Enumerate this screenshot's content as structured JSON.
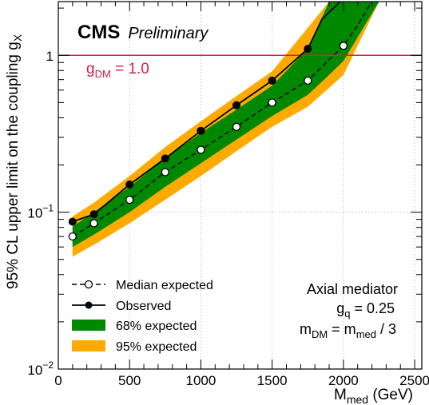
{
  "chart_data": {
    "type": "line",
    "y_scale": "log",
    "xlim": [
      0,
      2550
    ],
    "ylim": [
      0.01,
      2.2
    ],
    "grid": true,
    "xlabel": {
      "main": "M",
      "sub": "med",
      "unit": " (GeV)"
    },
    "ylabel": {
      "main": "95% CL upper limit on the coupling g",
      "sub": "X"
    },
    "x_ticks": [
      0,
      500,
      1000,
      1500,
      2000,
      2500
    ],
    "x_tick_labels": [
      "0",
      "500",
      "1000",
      "1500",
      "2000",
      "2500"
    ],
    "y_ticks": [
      0.01,
      0.1,
      1
    ],
    "y_tick_labels": [
      {
        "base": "10",
        "exp": "−2"
      },
      {
        "base": "10",
        "exp": "−1"
      },
      {
        "base": "1",
        "exp": ""
      }
    ],
    "header": {
      "experiment": "CMS",
      "status": "Preliminary"
    },
    "reference_line": {
      "y": 1.0,
      "label_main": "g",
      "label_sub": "DM",
      "label_rest": " = 1.0",
      "color": "#d2204b"
    },
    "annotation": {
      "line1": "Axial mediator",
      "line2": {
        "main": "g",
        "sub": "q",
        "rest": " = 0.25"
      },
      "line3": {
        "m1": "m",
        "s1": "DM",
        "eq": " = m",
        "s2": "med",
        "rest": " / 3"
      }
    },
    "legend": {
      "position": "bottom-left",
      "entries": [
        {
          "key": "expected",
          "label": "Median expected"
        },
        {
          "key": "observed",
          "label": "Observed"
        },
        {
          "key": "band68",
          "label": "68% expected"
        },
        {
          "key": "band95",
          "label": "95% expected"
        }
      ]
    },
    "colors": {
      "band68": "#008800",
      "band95": "#ffaa00",
      "observed": "#000000",
      "expected": "#000000",
      "grid": "#c8c8c8"
    },
    "series": [
      {
        "key": "observed",
        "x": [
          100,
          250,
          500,
          750,
          1000,
          1250,
          1500,
          1750,
          1850,
          2000
        ],
        "y": [
          0.087,
          0.097,
          0.15,
          0.22,
          0.33,
          0.48,
          0.69,
          1.1,
          1.7,
          2.3
        ]
      },
      {
        "key": "expected",
        "x": [
          100,
          250,
          500,
          750,
          1000,
          1250,
          1500,
          1750,
          2000,
          2100,
          2200
        ],
        "y": [
          0.07,
          0.085,
          0.12,
          0.18,
          0.25,
          0.35,
          0.5,
          0.69,
          1.15,
          1.55,
          2.2
        ]
      }
    ],
    "bands": {
      "x": [
        100,
        250,
        500,
        750,
        1000,
        1250,
        1500,
        1750,
        1900,
        2000,
        2250
      ],
      "band68": {
        "low": [
          0.06,
          0.072,
          0.1,
          0.145,
          0.205,
          0.29,
          0.41,
          0.56,
          0.75,
          0.92,
          2.2
        ],
        "high": [
          0.081,
          0.1,
          0.145,
          0.22,
          0.32,
          0.45,
          0.64,
          1.1,
          2.2,
          2.2,
          2.2
        ]
      },
      "band95": {
        "low": [
          0.052,
          0.062,
          0.085,
          0.12,
          0.17,
          0.245,
          0.35,
          0.47,
          0.62,
          0.75,
          2.2
        ],
        "high": [
          0.094,
          0.115,
          0.17,
          0.26,
          0.38,
          0.55,
          0.79,
          1.5,
          2.2,
          2.2,
          2.2
        ]
      }
    }
  }
}
